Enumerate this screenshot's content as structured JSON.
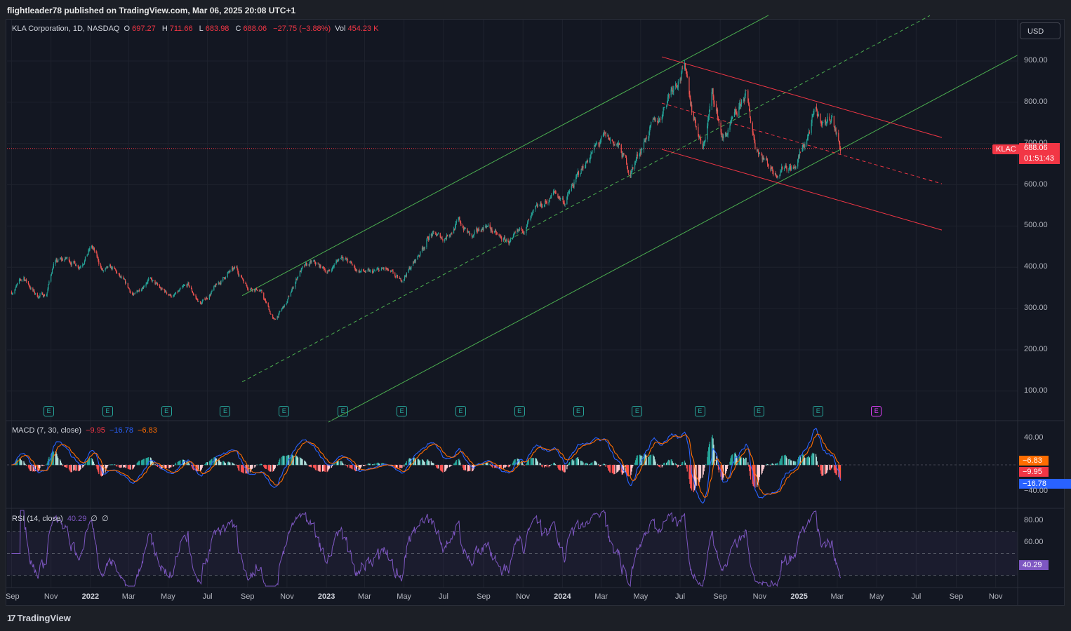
{
  "header": {
    "caption": "flightleader78 published on TradingView.com, Mar 06, 2025 20:08 UTC+1"
  },
  "legend": {
    "symbol": "KLA Corporation, 1D, NASDAQ",
    "o_label": "O",
    "o_value": "697.27",
    "h_label": "H",
    "h_value": "711.66",
    "l_label": "L",
    "l_value": "683.98",
    "c_label": "C",
    "c_value": "688.06",
    "change": "−27.75 (−3.88%)",
    "vol_label": "Vol",
    "vol_value": "454.23 K"
  },
  "currency_button": "USD",
  "price_tag": {
    "symbol": "KLAC",
    "price": "688.06",
    "countdown": "01:51:43"
  },
  "macd_legend": {
    "title": "MACD (7, 30, close)",
    "hist": "−9.95",
    "macd": "−16.78",
    "signal": "−6.83"
  },
  "rsi_legend": {
    "title": "RSI (14, close)",
    "value": "40.29",
    "extra1": "∅",
    "extra2": "∅"
  },
  "macd_tags": {
    "signal": "−6.83",
    "hist": "−9.95",
    "macd": "−16.78"
  },
  "rsi_tag": "40.29",
  "footer": {
    "brand": "TradingView"
  },
  "colors": {
    "up": "#26a69a",
    "down": "#ef5350",
    "channel_up": "#4caf50",
    "channel_down": "#f23645",
    "macd": "#2962ff",
    "signal": "#ff6d00",
    "rsi": "#7e57c2"
  },
  "chart_data": {
    "type": "candlestick",
    "title": "KLA Corporation, 1D, NASDAQ",
    "y_axis": {
      "ticks": [
        "900.00",
        "800.00",
        "700.00",
        "600.00",
        "500.00",
        "400.00",
        "300.00",
        "200.00",
        "100.00"
      ]
    },
    "x_axis": {
      "ticks": [
        "Sep",
        "Nov",
        "2022",
        "Mar",
        "May",
        "Jul",
        "Sep",
        "Nov",
        "2023",
        "Mar",
        "May",
        "Jul",
        "Sep",
        "Nov",
        "2024",
        "Mar",
        "May",
        "Jul",
        "Sep",
        "Nov",
        "2025",
        "Mar",
        "May",
        "Jul",
        "Sep",
        "Nov"
      ],
      "bold_ticks": [
        "2022",
        "2023",
        "2024",
        "2025"
      ]
    },
    "price_path": [
      [
        "2021-09-01",
        340
      ],
      [
        "2021-09-20",
        375
      ],
      [
        "2021-10-10",
        330
      ],
      [
        "2021-10-25",
        335
      ],
      [
        "2021-11-05",
        410
      ],
      [
        "2021-11-25",
        420
      ],
      [
        "2021-12-15",
        405
      ],
      [
        "2022-01-03",
        450
      ],
      [
        "2022-01-20",
        390
      ],
      [
        "2022-02-05",
        395
      ],
      [
        "2022-02-25",
        355
      ],
      [
        "2022-03-10",
        330
      ],
      [
        "2022-03-31",
        375
      ],
      [
        "2022-04-20",
        345
      ],
      [
        "2022-05-10",
        330
      ],
      [
        "2022-06-01",
        355
      ],
      [
        "2022-06-20",
        310
      ],
      [
        "2022-07-10",
        345
      ],
      [
        "2022-08-01",
        385
      ],
      [
        "2022-08-15",
        395
      ],
      [
        "2022-09-01",
        355
      ],
      [
        "2022-09-20",
        345
      ],
      [
        "2022-10-12",
        270
      ],
      [
        "2022-11-01",
        315
      ],
      [
        "2022-11-20",
        390
      ],
      [
        "2022-12-10",
        410
      ],
      [
        "2023-01-05",
        390
      ],
      [
        "2023-01-25",
        430
      ],
      [
        "2023-02-15",
        395
      ],
      [
        "2023-03-10",
        385
      ],
      [
        "2023-04-01",
        395
      ],
      [
        "2023-04-25",
        365
      ],
      [
        "2023-05-20",
        420
      ],
      [
        "2023-06-10",
        480
      ],
      [
        "2023-07-01",
        470
      ],
      [
        "2023-07-25",
        510
      ],
      [
        "2023-08-15",
        470
      ],
      [
        "2023-09-05",
        505
      ],
      [
        "2023-09-25",
        470
      ],
      [
        "2023-10-15",
        460
      ],
      [
        "2023-11-05",
        500
      ],
      [
        "2023-11-25",
        540
      ],
      [
        "2023-12-20",
        580
      ],
      [
        "2024-01-05",
        560
      ],
      [
        "2024-01-25",
        620
      ],
      [
        "2024-02-15",
        680
      ],
      [
        "2024-03-05",
        710
      ],
      [
        "2024-03-25",
        700
      ],
      [
        "2024-04-15",
        630
      ],
      [
        "2024-05-10",
        720
      ],
      [
        "2024-05-30",
        760
      ],
      [
        "2024-06-15",
        830
      ],
      [
        "2024-07-01",
        870
      ],
      [
        "2024-07-10",
        880
      ],
      [
        "2024-07-20",
        780
      ],
      [
        "2024-08-05",
        680
      ],
      [
        "2024-08-20",
        820
      ],
      [
        "2024-09-05",
        710
      ],
      [
        "2024-09-25",
        760
      ],
      [
        "2024-10-10",
        820
      ],
      [
        "2024-10-25",
        700
      ],
      [
        "2024-11-10",
        660
      ],
      [
        "2024-11-25",
        630
      ],
      [
        "2024-12-10",
        650
      ],
      [
        "2024-12-25",
        640
      ],
      [
        "2025-01-10",
        700
      ],
      [
        "2025-01-25",
        770
      ],
      [
        "2025-02-10",
        750
      ],
      [
        "2025-02-20",
        770
      ],
      [
        "2025-03-06",
        688.06
      ]
    ],
    "annotations": {
      "green_channel_upper": [
        [
          "2022-09-15",
          350
        ],
        [
          "2024-07-05",
          900
        ]
      ],
      "red_channel_upper": [
        [
          "2024-06-25",
          900
        ],
        [
          "2025-08-20",
          710
        ]
      ],
      "last_price_line": 688.06
    },
    "earnings_markers": [
      "2021-10-28",
      "2022-01-27",
      "2022-04-28",
      "2022-07-28",
      "2022-10-27",
      "2023-01-26",
      "2023-04-27",
      "2023-07-27",
      "2023-10-26",
      "2024-01-25",
      "2024-04-25",
      "2024-07-31",
      "2024-10-30",
      "2025-01-30",
      "2025-04-30"
    ]
  },
  "macd_axis": [
    "40.00",
    "−40.00"
  ],
  "rsi_axis": [
    "80.00",
    "60.00"
  ]
}
